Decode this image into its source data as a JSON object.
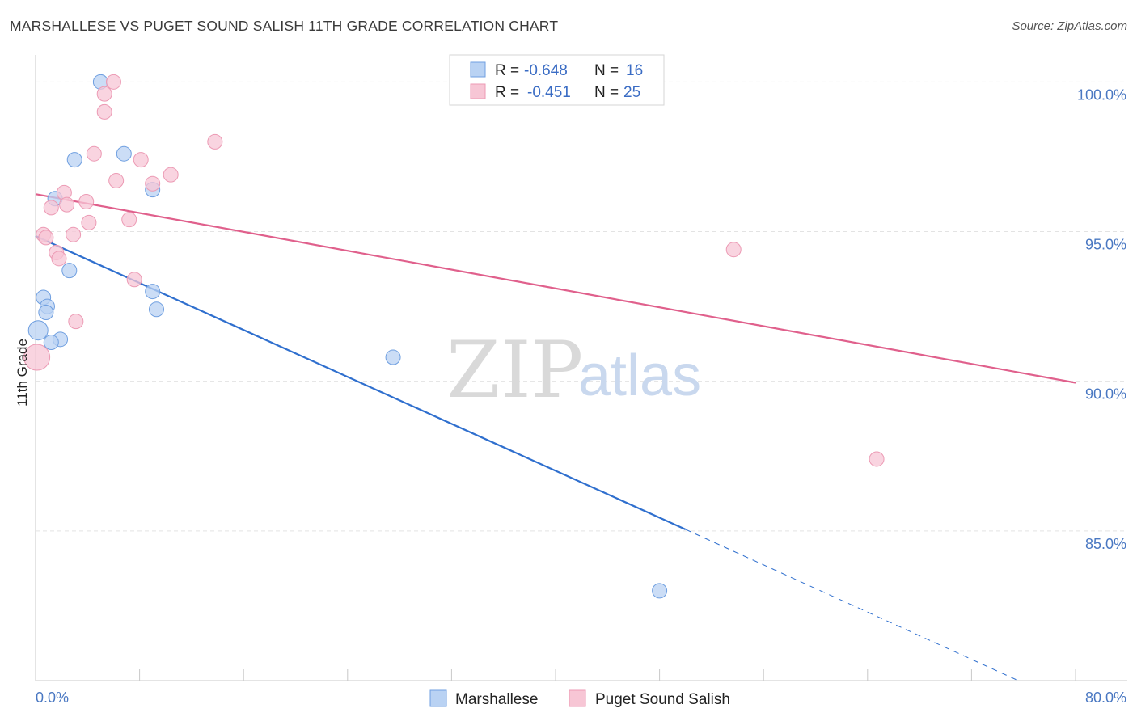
{
  "title": "MARSHALLESE VS PUGET SOUND SALISH 11TH GRADE CORRELATION CHART",
  "source": "Source: ZipAtlas.com",
  "chart_data": {
    "type": "scatter",
    "xlabel": "",
    "ylabel": "11th Grade",
    "xlim": [
      0,
      80
    ],
    "ylim": [
      80.0,
      100.9
    ],
    "x_tick_labels": {
      "left": "0.0%",
      "right": "80.0%"
    },
    "y_ticks": [
      {
        "value": 100.0,
        "label": "100.0%"
      },
      {
        "value": 95.0,
        "label": "95.0%"
      },
      {
        "value": 90.0,
        "label": "90.0%"
      },
      {
        "value": 85.0,
        "label": "85.0%"
      }
    ],
    "watermark": {
      "zip": "ZIP",
      "atlas": "atlas"
    },
    "legend": {
      "r_label": "R =",
      "n_label": "N =",
      "entries": [
        {
          "r": "-0.648",
          "n": "16"
        },
        {
          "r": "-0.451",
          "n": "25"
        }
      ]
    },
    "series": [
      {
        "name": "Marshallese",
        "color": "#6f9fe0",
        "fill": "#b9d2f3",
        "line_color": "#2f6fce",
        "trend": {
          "x0": 0.0,
          "y0": 94.85,
          "x1": 50.0,
          "y1": 85.05,
          "dash_to_x": 75.6,
          "dash_to_y": 80.0
        },
        "points": [
          [
            5.0,
            100.0
          ],
          [
            6.8,
            97.6
          ],
          [
            3.0,
            97.4
          ],
          [
            9.0,
            96.4
          ],
          [
            1.5,
            96.1
          ],
          [
            2.6,
            93.7
          ],
          [
            9.0,
            93.0
          ],
          [
            0.6,
            92.8
          ],
          [
            0.9,
            92.5
          ],
          [
            0.8,
            92.3
          ],
          [
            9.3,
            92.4
          ],
          [
            0.2,
            91.7
          ],
          [
            1.9,
            91.4
          ],
          [
            1.2,
            91.3
          ],
          [
            27.5,
            90.8
          ],
          [
            48.0,
            83.0
          ]
        ],
        "sizes": [
          9,
          9,
          9,
          9,
          9,
          9,
          9,
          9,
          9,
          9,
          9,
          12,
          9,
          9,
          9,
          9
        ]
      },
      {
        "name": "Puget Sound Salish",
        "color": "#ec9ab4",
        "fill": "#f7c6d5",
        "line_color": "#e0608c",
        "trend": {
          "x0": 0.0,
          "y0": 96.25,
          "x1": 80.0,
          "y1": 89.95
        },
        "points": [
          [
            6.0,
            100.0
          ],
          [
            5.3,
            99.6
          ],
          [
            5.3,
            99.0
          ],
          [
            13.8,
            98.0
          ],
          [
            4.5,
            97.6
          ],
          [
            8.1,
            97.4
          ],
          [
            10.4,
            96.9
          ],
          [
            6.2,
            96.7
          ],
          [
            9.0,
            96.6
          ],
          [
            2.2,
            96.3
          ],
          [
            3.9,
            96.0
          ],
          [
            2.4,
            95.9
          ],
          [
            1.2,
            95.8
          ],
          [
            7.2,
            95.4
          ],
          [
            4.1,
            95.3
          ],
          [
            0.6,
            94.9
          ],
          [
            2.9,
            94.9
          ],
          [
            0.8,
            94.8
          ],
          [
            1.6,
            94.3
          ],
          [
            1.8,
            94.1
          ],
          [
            53.7,
            94.4
          ],
          [
            7.6,
            93.4
          ],
          [
            3.1,
            92.0
          ],
          [
            0.1,
            90.8
          ],
          [
            64.7,
            87.4
          ]
        ],
        "sizes": [
          9,
          9,
          9,
          9,
          9,
          9,
          9,
          9,
          9,
          9,
          9,
          9,
          9,
          9,
          9,
          9,
          9,
          9,
          9,
          9,
          9,
          9,
          9,
          16,
          9
        ]
      }
    ]
  }
}
